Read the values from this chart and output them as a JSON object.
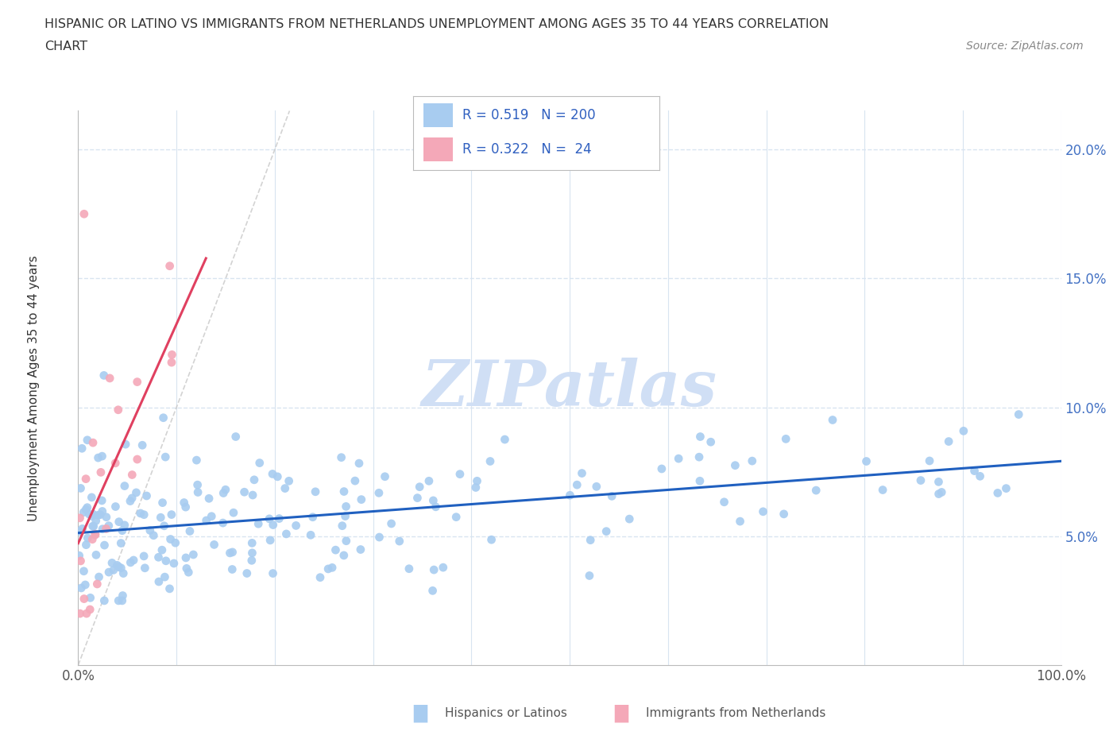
{
  "title_line1": "HISPANIC OR LATINO VS IMMIGRANTS FROM NETHERLANDS UNEMPLOYMENT AMONG AGES 35 TO 44 YEARS CORRELATION",
  "title_line2": "CHART",
  "source_text": "Source: ZipAtlas.com",
  "ylabel": "Unemployment Among Ages 35 to 44 years",
  "xlim": [
    0,
    1.0
  ],
  "ylim": [
    0,
    0.215
  ],
  "xticks": [
    0.0,
    0.1,
    0.2,
    0.3,
    0.4,
    0.5,
    0.6,
    0.7,
    0.8,
    0.9,
    1.0
  ],
  "yticks": [
    0.05,
    0.1,
    0.15,
    0.2
  ],
  "yticklabels": [
    "5.0%",
    "10.0%",
    "15.0%",
    "20.0%"
  ],
  "blue_color": "#A8CCF0",
  "pink_color": "#F4A8B8",
  "blue_line_color": "#2060C0",
  "pink_line_color": "#E04060",
  "R_blue": 0.519,
  "N_blue": 200,
  "R_pink": 0.322,
  "N_pink": 24,
  "watermark": "ZIPatlas",
  "watermark_color": "#D0DFF5",
  "background_color": "#FFFFFF",
  "grid_color": "#D8E4F0",
  "seed_blue": 42,
  "seed_pink": 7
}
